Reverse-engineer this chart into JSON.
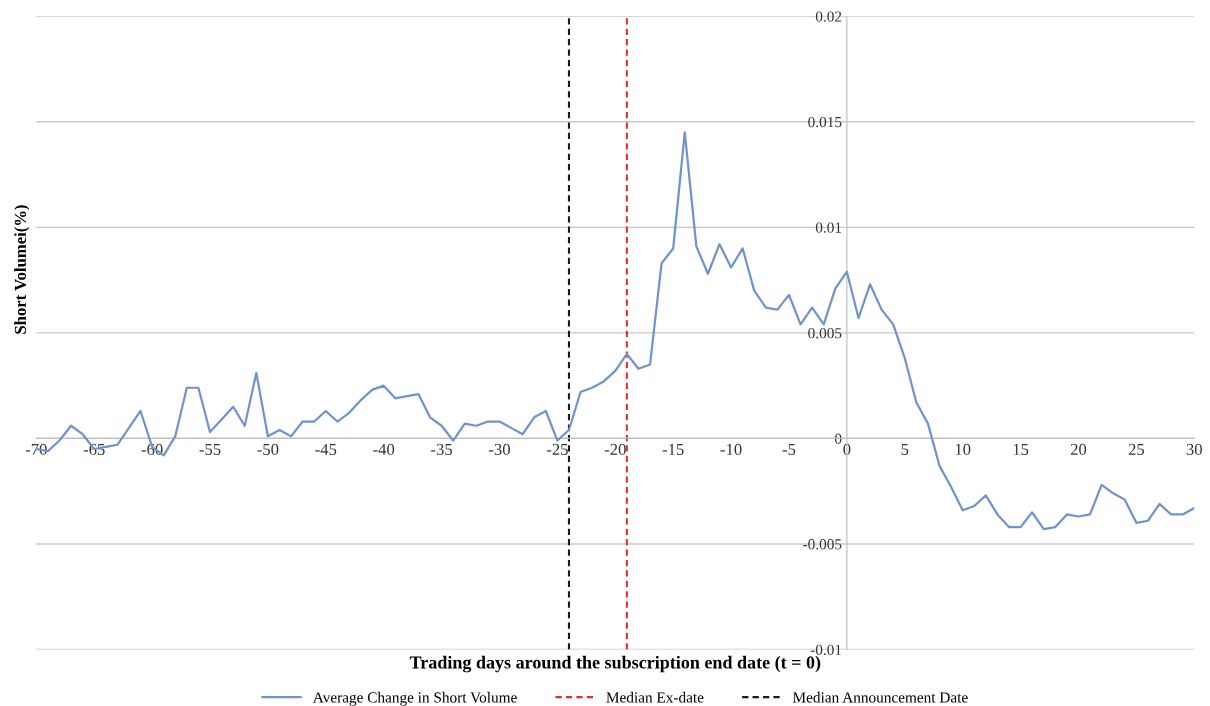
{
  "chart_data": {
    "type": "line",
    "xlabel": "Trading days around the subscription end date (t = 0)",
    "ylabel": "Short Volumei(%)",
    "x": [
      -70,
      -69,
      -68,
      -67,
      -66,
      -65,
      -64,
      -63,
      -62,
      -61,
      -60,
      -59,
      -58,
      -57,
      -56,
      -55,
      -54,
      -53,
      -52,
      -51,
      -50,
      -49,
      -48,
      -47,
      -46,
      -45,
      -44,
      -43,
      -42,
      -41,
      -40,
      -39,
      -38,
      -37,
      -36,
      -35,
      -34,
      -33,
      -32,
      -31,
      -30,
      -29,
      -28,
      -27,
      -26,
      -25,
      -24,
      -23,
      -22,
      -21,
      -20,
      -19,
      -18,
      -17,
      -16,
      -15,
      -14,
      -13,
      -12,
      -11,
      -10,
      -9,
      -8,
      -7,
      -6,
      -5,
      -4,
      -3,
      -2,
      -1,
      0,
      1,
      2,
      3,
      4,
      5,
      6,
      7,
      8,
      9,
      10,
      11,
      12,
      13,
      14,
      15,
      16,
      17,
      18,
      19,
      20,
      21,
      22,
      23,
      24,
      25,
      26,
      27,
      28,
      29,
      30
    ],
    "series": [
      {
        "name": "Average Change in Short Volume",
        "color": "#6f94cc",
        "values": [
          -0.0005,
          -0.0006,
          -0.0001,
          0.0006,
          0.0002,
          -0.0005,
          -0.0004,
          -0.0003,
          0.0005,
          0.0013,
          -0.0004,
          -0.0008,
          0.0001,
          0.0024,
          0.0024,
          0.0003,
          0.0009,
          0.0015,
          0.0006,
          0.0031,
          0.0001,
          0.0004,
          0.0001,
          0.0008,
          0.0008,
          0.0013,
          0.0008,
          0.0012,
          0.0018,
          0.0023,
          0.0025,
          0.0019,
          0.002,
          0.0021,
          0.001,
          0.0006,
          -0.0001,
          0.0007,
          0.0006,
          0.0008,
          0.0008,
          0.0005,
          0.0002,
          0.001,
          0.0013,
          -0.0001,
          0.0004,
          0.0022,
          0.0024,
          0.0027,
          0.0032,
          0.004,
          0.0033,
          0.0035,
          0.0083,
          0.009,
          0.0145,
          0.0091,
          0.0078,
          0.0092,
          0.0081,
          0.009,
          0.007,
          0.0062,
          0.0061,
          0.0068,
          0.0054,
          0.0062,
          0.0054,
          0.0071,
          0.0079,
          0.0057,
          0.0073,
          0.0061,
          0.0054,
          0.0038,
          0.0017,
          0.0007,
          -0.0013,
          -0.0023,
          -0.0034,
          -0.0032,
          -0.0027,
          -0.0036,
          -0.0042,
          -0.0042,
          -0.0035,
          -0.0043,
          -0.0042,
          -0.0036,
          -0.0037,
          -0.0036,
          -0.0022,
          -0.0026,
          -0.0029,
          -0.004,
          -0.0039,
          -0.0031,
          -0.0036,
          -0.0036,
          -0.0033
        ]
      }
    ],
    "ref_lines": [
      {
        "axis": "x",
        "value": -19,
        "label": "Median Ex-date",
        "color": "#e0302a",
        "line_style": "dashed"
      },
      {
        "axis": "x",
        "value": -24,
        "label": "Median Announcement Date",
        "color": "#1a1a1a",
        "line_style": "dashed"
      }
    ],
    "xlim": [
      -70,
      30
    ],
    "xticks": [
      -70,
      -65,
      -60,
      -55,
      -50,
      -45,
      -40,
      -35,
      -30,
      -25,
      -20,
      -15,
      -10,
      -5,
      0,
      5,
      10,
      15,
      20,
      25,
      30
    ],
    "ylim": [
      -0.01,
      0.02
    ],
    "yticks": [
      -0.01,
      -0.005,
      0,
      0.005,
      0.01,
      0.015,
      0.02
    ],
    "grid": "y",
    "legend": "bottom",
    "marker": "none",
    "line_style": "solid"
  }
}
